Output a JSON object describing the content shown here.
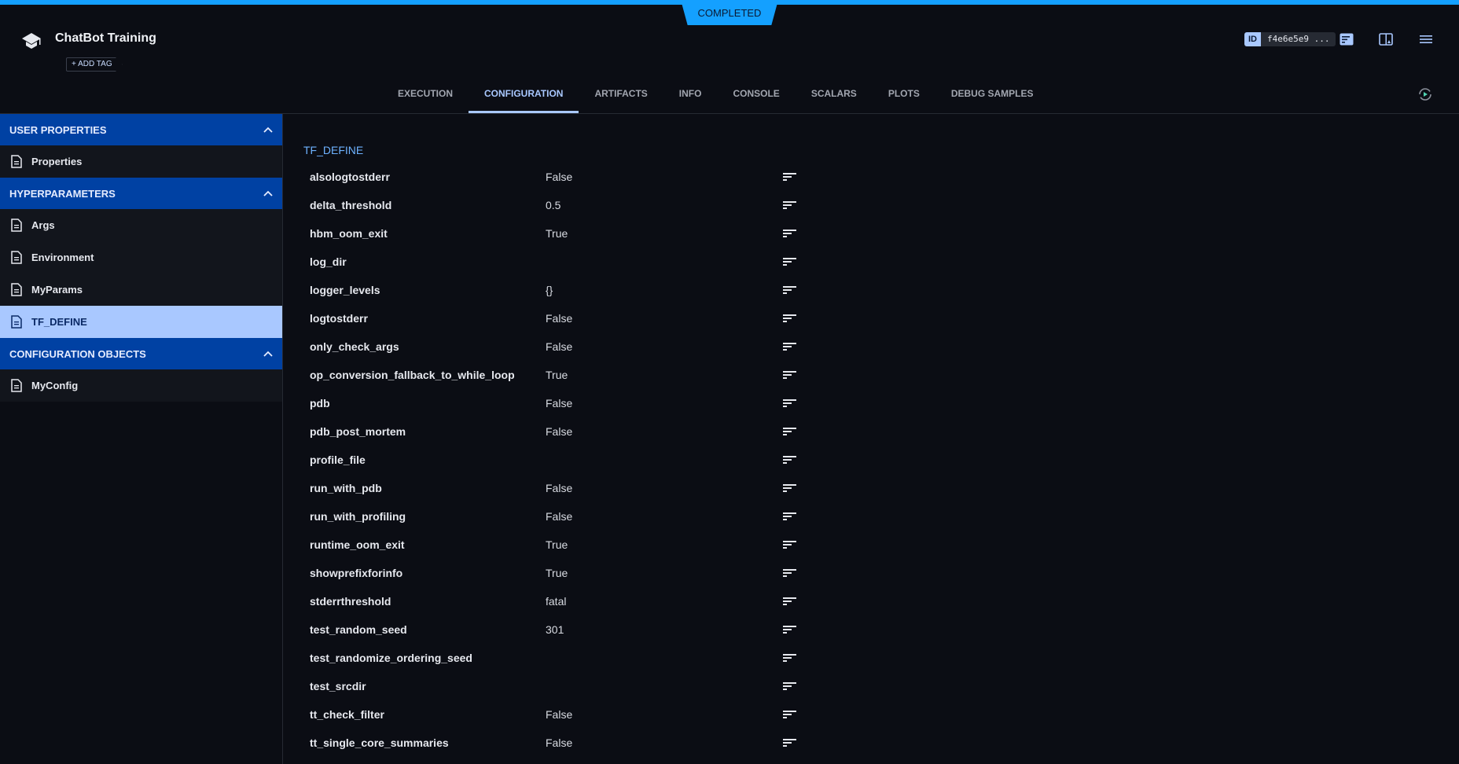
{
  "header": {
    "status": "COMPLETED",
    "title": "ChatBot Training",
    "add_tag": "+ ADD TAG",
    "id_label": "ID",
    "id_value": "f4e6e5e9 ..."
  },
  "tabs": [
    {
      "label": "EXECUTION"
    },
    {
      "label": "CONFIGURATION",
      "active": true
    },
    {
      "label": "ARTIFACTS"
    },
    {
      "label": "INFO"
    },
    {
      "label": "CONSOLE"
    },
    {
      "label": "SCALARS"
    },
    {
      "label": "PLOTS"
    },
    {
      "label": "DEBUG SAMPLES"
    }
  ],
  "sidebar": {
    "sections": [
      {
        "title": "USER PROPERTIES",
        "items": [
          "Properties"
        ]
      },
      {
        "title": "HYPERPARAMETERS",
        "items": [
          "Args",
          "Environment",
          "MyParams",
          "TF_DEFINE"
        ]
      },
      {
        "title": "CONFIGURATION OBJECTS",
        "items": [
          "MyConfig"
        ]
      }
    ],
    "selected": "TF_DEFINE"
  },
  "main": {
    "title": "TF_DEFINE",
    "rows": [
      {
        "name": "alsologtostderr",
        "value": "False"
      },
      {
        "name": "delta_threshold",
        "value": "0.5"
      },
      {
        "name": "hbm_oom_exit",
        "value": "True"
      },
      {
        "name": "log_dir",
        "value": ""
      },
      {
        "name": "logger_levels",
        "value": "{}"
      },
      {
        "name": "logtostderr",
        "value": "False"
      },
      {
        "name": "only_check_args",
        "value": "False"
      },
      {
        "name": "op_conversion_fallback_to_while_loop",
        "value": "True"
      },
      {
        "name": "pdb",
        "value": "False"
      },
      {
        "name": "pdb_post_mortem",
        "value": "False"
      },
      {
        "name": "profile_file",
        "value": ""
      },
      {
        "name": "run_with_pdb",
        "value": "False"
      },
      {
        "name": "run_with_profiling",
        "value": "False"
      },
      {
        "name": "runtime_oom_exit",
        "value": "True"
      },
      {
        "name": "showprefixforinfo",
        "value": "True"
      },
      {
        "name": "stderrthreshold",
        "value": "fatal"
      },
      {
        "name": "test_random_seed",
        "value": "301"
      },
      {
        "name": "test_randomize_ordering_seed",
        "value": ""
      },
      {
        "name": "test_srcdir",
        "value": ""
      },
      {
        "name": "tt_check_filter",
        "value": "False"
      },
      {
        "name": "tt_single_core_summaries",
        "value": "False"
      }
    ]
  },
  "colors": {
    "accent": "#14a0ff",
    "section": "#0041a3",
    "selected": "#a9c8ff",
    "background": "#0b0d14"
  }
}
